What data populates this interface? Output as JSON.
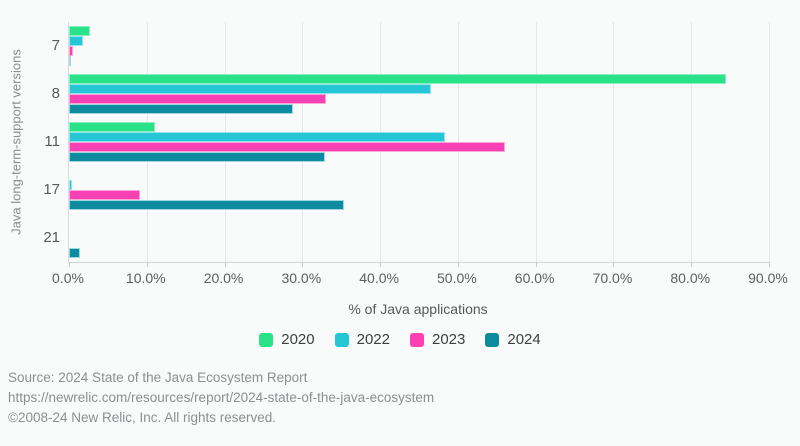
{
  "chart_data": {
    "type": "bar",
    "orientation": "horizontal",
    "categories": [
      "7",
      "8",
      "11",
      "17",
      "21"
    ],
    "series": [
      {
        "name": "2020",
        "color": "#2ae288",
        "border_color": "#8cefc2",
        "values": [
          2.7,
          84.5,
          11.1,
          0,
          0
        ]
      },
      {
        "name": "2022",
        "color": "#25c6d6",
        "border_color": "#97e4ee",
        "values": [
          1.8,
          46.5,
          48.4,
          0.4,
          0
        ]
      },
      {
        "name": "2023",
        "color": "#fb40b4",
        "border_color": "#fda5d8",
        "values": [
          0.5,
          33.0,
          56.1,
          9.1,
          0
        ]
      },
      {
        "name": "2024",
        "color": "#0c8c9e",
        "border_color": "#a2d8e1",
        "values": [
          0.3,
          28.8,
          32.9,
          35.4,
          1.4
        ]
      }
    ],
    "xlabel": "% of Java applications",
    "ylabel": "Java long-term-support versions",
    "xlim": [
      0,
      90
    ],
    "x_ticks": [
      "0.0%",
      "10.0%",
      "20.0%",
      "30.0%",
      "40.0%",
      "50.0%",
      "60.0%",
      "70.0%",
      "80.0%",
      "90.0%"
    ],
    "grid": true,
    "legend_position": "bottom"
  },
  "footer": {
    "lines": [
      "Source: 2024 State of the Java Ecosystem Report",
      "https://newrelic.com/resources/report/2024-state-of-the-java-ecosystem",
      "©2008-24 New Relic, Inc. All rights reserved."
    ]
  },
  "palette": {
    "background": "#f9fafa",
    "gridline": "#e6e9e9",
    "axis_line": "#d3d6d6",
    "tick_text": "#5c6162",
    "footer_text": "#8b9091"
  }
}
